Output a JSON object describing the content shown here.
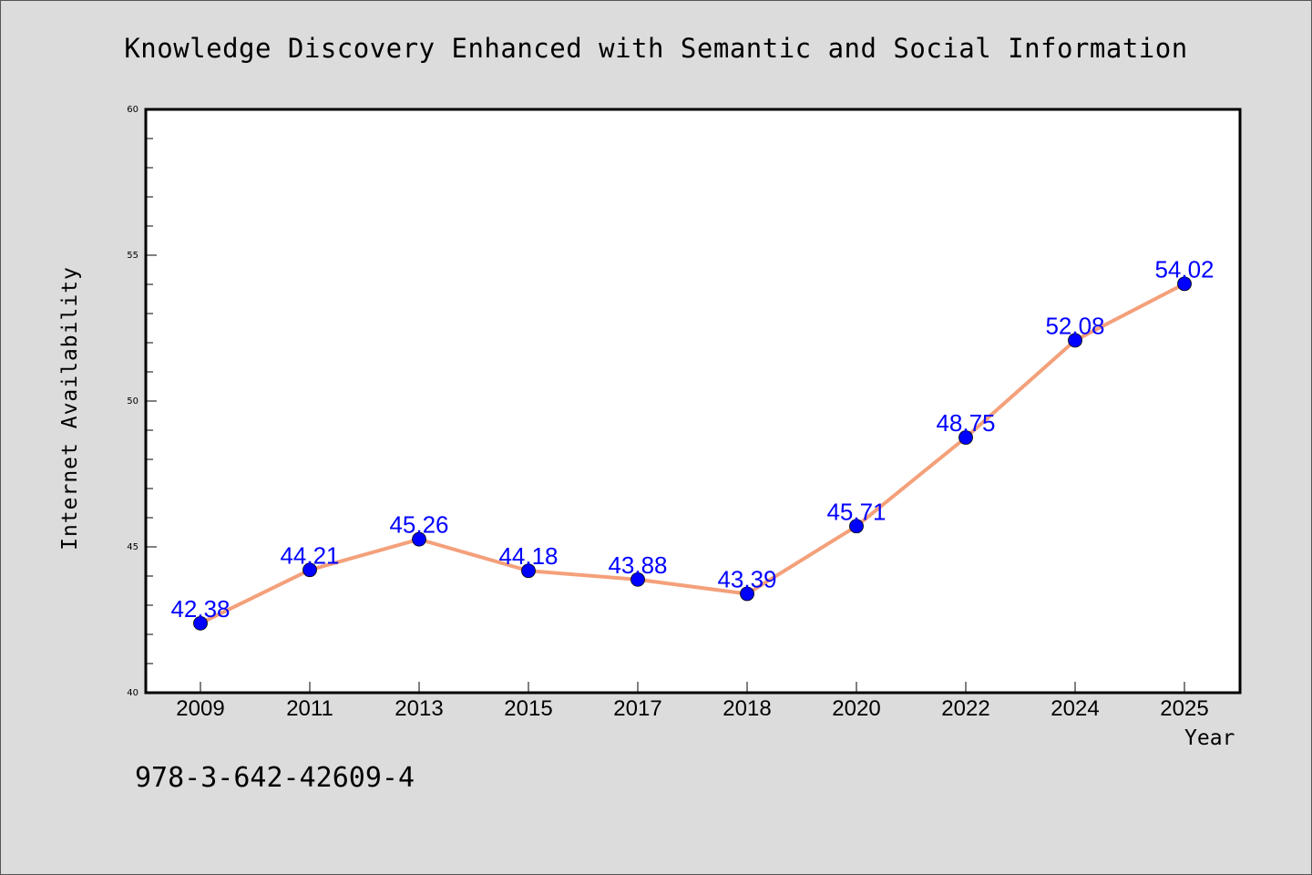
{
  "chart_data": {
    "type": "line",
    "title": "Knowledge Discovery Enhanced with Semantic and Social Information",
    "xlabel": "Year",
    "ylabel": "Internet Availability",
    "categories": [
      "2009",
      "2011",
      "2013",
      "2015",
      "2017",
      "2018",
      "2020",
      "2022",
      "2024",
      "2025"
    ],
    "series": [
      {
        "values": [
          42.38,
          44.21,
          45.26,
          44.18,
          43.88,
          43.39,
          45.71,
          48.75,
          52.08,
          54.02
        ]
      }
    ],
    "data_labels": [
      "42.38",
      "44.21",
      "45.26",
      "44.18",
      "43.88",
      "43.39",
      "45.71",
      "48.75",
      "52.08",
      "54.02"
    ],
    "ylim": [
      40,
      60
    ],
    "y_ticks": [
      "40",
      "45",
      "50",
      "55",
      "60"
    ],
    "grid": false,
    "line_color": "#f4a07a",
    "marker_color": "#0000ff",
    "label_color": "#0000ff",
    "plot_background": "#ffffff",
    "figure_background": "#dcdcdc"
  },
  "annotation": {
    "text": "978-3-642-42609-4"
  }
}
